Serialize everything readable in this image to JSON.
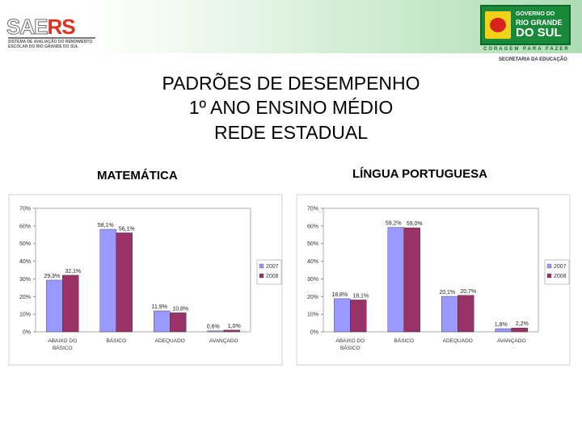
{
  "header": {
    "saers_logo_text": "SAERS",
    "saers_logo_subtitle": "SISTEMA DE AVALIAÇÃO DO RENDIMENTO ESCOLAR DO RIO GRANDE DO SUL",
    "gov_logo_line1": "GOVERNO DO",
    "gov_logo_line2": "RIO GRANDE",
    "gov_logo_line3": "DO SUL",
    "gov_slogan": "CORAGEM PARA FAZER",
    "gov_department": "SECRETARIA DA EDUCAÇÃO"
  },
  "title_lines": [
    "PADRÕES DE DESEMPENHO",
    "1º ANO ENSINO MÉDIO",
    "REDE ESTADUAL"
  ],
  "panels": [
    {
      "heading": "MATEMÁTICA"
    },
    {
      "heading": "LÍNGUA PORTUGUESA"
    }
  ],
  "colors": {
    "series_2007": "#9999ff",
    "series_2008": "#993366"
  },
  "chart_data": [
    {
      "type": "bar",
      "title": "MATEMÁTICA",
      "categories": [
        "ABAIXO DO BÁSICO",
        "BÁSICO",
        "ADEQUADO",
        "AVANÇADO"
      ],
      "series": [
        {
          "name": "2007",
          "values": [
            29.3,
            58.1,
            11.9,
            0.6
          ],
          "labels": [
            "29,3%",
            "58,1%",
            "11,9%",
            "0,6%"
          ]
        },
        {
          "name": "2008",
          "values": [
            32.1,
            56.1,
            10.8,
            1.0
          ],
          "labels": [
            "32,1%",
            "56,1%",
            "10,8%",
            "1,0%"
          ]
        }
      ],
      "ylim": [
        0,
        70
      ],
      "yticks": [
        "0%",
        "10%",
        "20%",
        "30%",
        "40%",
        "50%",
        "60%",
        "70%"
      ],
      "legend": "right"
    },
    {
      "type": "bar",
      "title": "LÍNGUA PORTUGUESA",
      "categories": [
        "ABAIXO DO BÁSICO",
        "BÁSICO",
        "ADEQUADO",
        "AVANÇADO"
      ],
      "series": [
        {
          "name": "2007",
          "values": [
            18.8,
            59.2,
            20.1,
            1.8
          ],
          "labels": [
            "18,8%",
            "59,2%",
            "20,1%",
            "1,8%"
          ]
        },
        {
          "name": "2008",
          "values": [
            18.1,
            59.0,
            20.7,
            2.2
          ],
          "labels": [
            "18,1%",
            "59,0%",
            "20,7%",
            "2,2%"
          ]
        }
      ],
      "ylim": [
        0,
        70
      ],
      "yticks": [
        "0%",
        "10%",
        "20%",
        "30%",
        "40%",
        "50%",
        "60%",
        "70%"
      ],
      "legend": "right"
    }
  ]
}
